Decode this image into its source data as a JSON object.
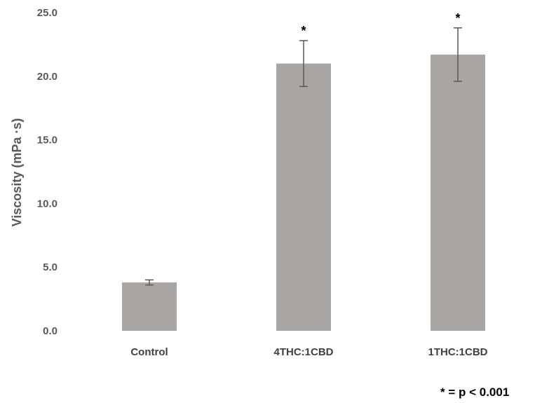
{
  "chart_data": {
    "type": "bar",
    "categories": [
      "Control",
      "4THC:1CBD",
      "1THC:1CBD"
    ],
    "values": [
      3.8,
      21.0,
      21.7
    ],
    "error": [
      0.2,
      1.8,
      2.1
    ],
    "significance": [
      "",
      "*",
      "*"
    ],
    "ylabel": "Viscosity (mPa ·s)",
    "xlabel": "",
    "ylim": [
      0,
      25
    ],
    "yticks": [
      "0.0",
      "5.0",
      "10.0",
      "15.0",
      "20.0",
      "25.0"
    ],
    "grid": false,
    "bar_color": "#a9a5a3",
    "error_color": "#595959",
    "footnote": "* = p < 0.001"
  }
}
